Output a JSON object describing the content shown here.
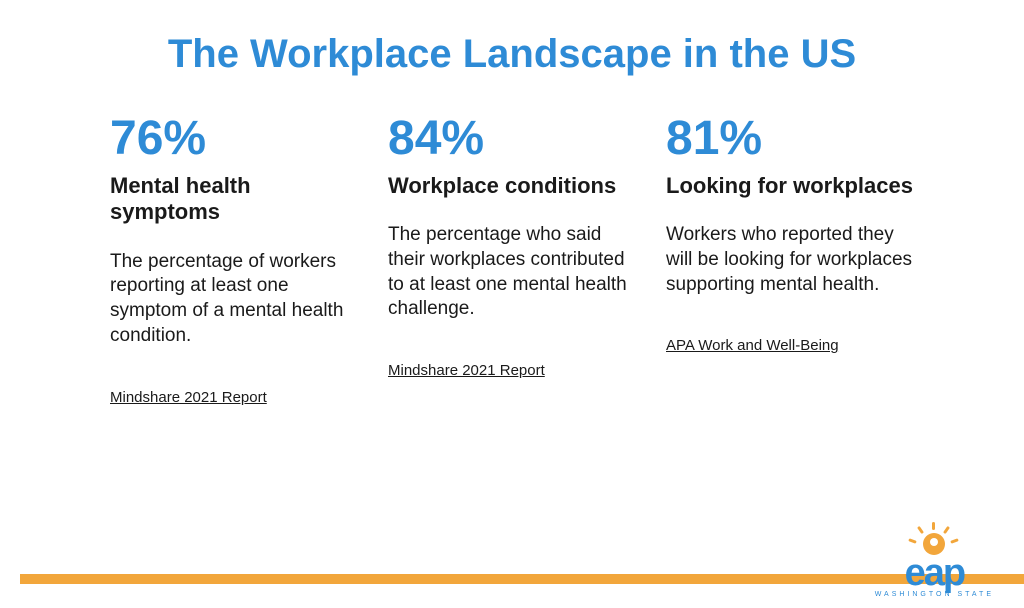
{
  "title": "The Workplace Landscape in the US",
  "title_color": "#2e8bd6",
  "background_color": "#ffffff",
  "accent_bar_color": "#f2a63b",
  "columns": [
    {
      "stat": "76%",
      "subheading": "Mental health symptoms",
      "description": "The percentage of workers reporting at least one symptom of a mental health condition.",
      "source": "Mindshare 2021 Report"
    },
    {
      "stat": "84%",
      "subheading": "Workplace conditions",
      "description": "The percentage who said their workplaces contributed to at least one mental health challenge.",
      "source": "Mindshare 2021 Report"
    },
    {
      "stat": "81%",
      "subheading": "Looking for workplaces",
      "description": "Workers who reported they will be looking for workplaces supporting mental health.",
      "source": "APA Work and Well-Being"
    }
  ],
  "logo": {
    "text": "eap",
    "subtext": "WASHINGTON STATE",
    "text_color": "#2e8bd6",
    "sun_color": "#f2a63b"
  },
  "typography": {
    "title_fontsize": 40,
    "stat_fontsize": 48,
    "subheading_fontsize": 22,
    "desc_fontsize": 19,
    "source_fontsize": 15
  }
}
